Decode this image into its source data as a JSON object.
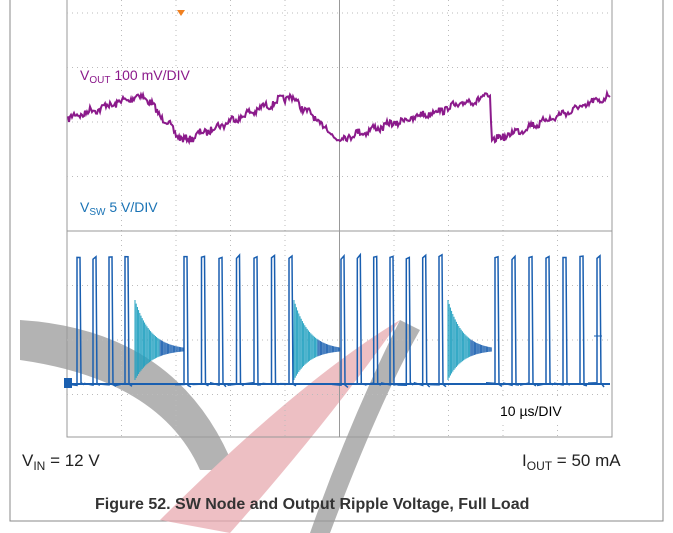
{
  "scope": {
    "ch1_label": {
      "symbol": "V",
      "subscript": "OUT",
      "text": " 100 mV/DIV"
    },
    "ch2_label": {
      "symbol": "V",
      "subscript": "SW",
      "text": " 5 V/DIV"
    },
    "timebase": "10 µs/DIV"
  },
  "conditions": {
    "left": {
      "symbol": "V",
      "subscript": "IN",
      "text": " = 12 V"
    },
    "right": {
      "symbol": "I",
      "subscript": "OUT",
      "text": " = 50 mA"
    }
  },
  "caption": "Figure 52. SW Node and Output Ripple Voltage, Full Load"
}
